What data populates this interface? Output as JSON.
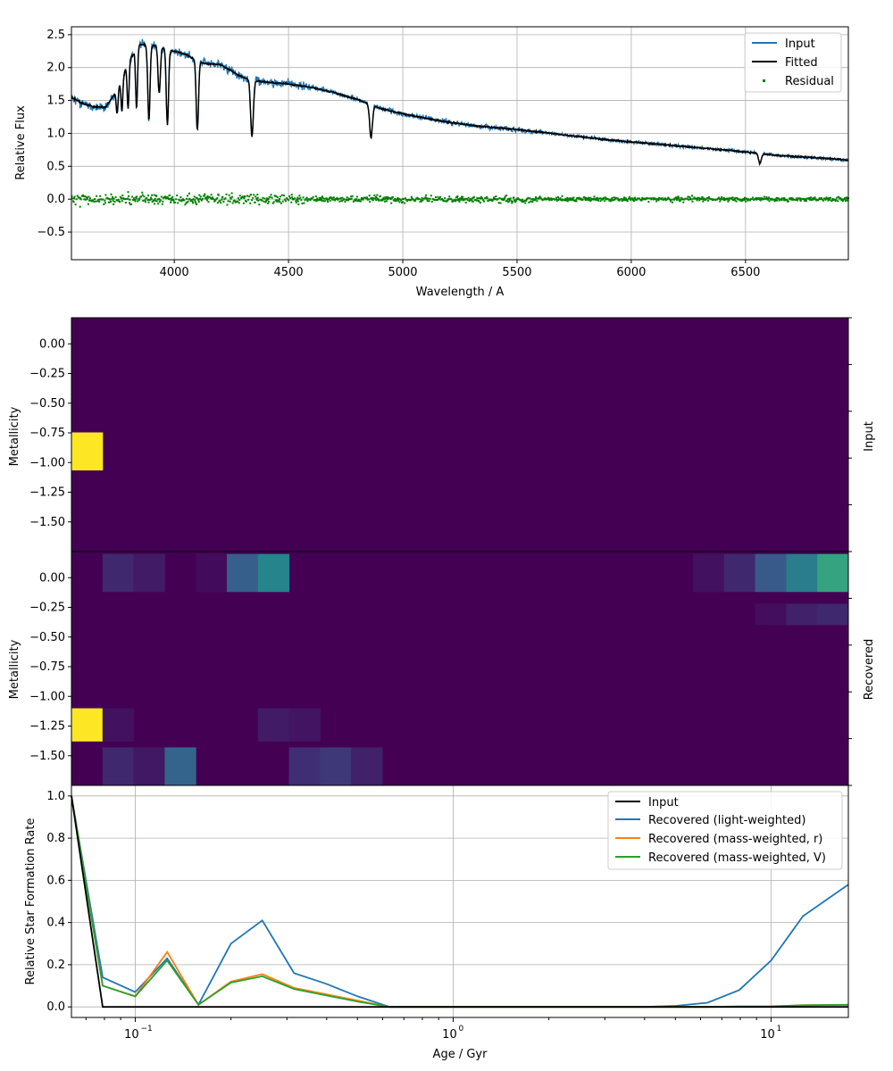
{
  "chart_data": [
    {
      "type": "line",
      "xlabel": "Wavelength / A",
      "ylabel": "Relative Flux",
      "xlim": [
        3550,
        6950
      ],
      "ylim": [
        -0.92,
        2.62
      ],
      "xticks": [
        4000,
        4500,
        5000,
        5500,
        6000,
        6500
      ],
      "yticks": [
        -0.5,
        0.0,
        0.5,
        1.0,
        1.5,
        2.0,
        2.5
      ],
      "ytick_labels": [
        "−0.5",
        "0.0",
        "0.5",
        "1.0",
        "1.5",
        "2.0",
        "2.5"
      ],
      "grid": true,
      "legend_position": "top-right",
      "continuum": [
        [
          3550,
          1.55
        ],
        [
          3600,
          1.45
        ],
        [
          3650,
          1.4
        ],
        [
          3700,
          1.4
        ],
        [
          3750,
          1.65
        ],
        [
          3800,
          2.1
        ],
        [
          3850,
          2.35
        ],
        [
          3900,
          2.35
        ],
        [
          3950,
          2.3
        ],
        [
          4000,
          2.25
        ],
        [
          4050,
          2.2
        ],
        [
          4100,
          2.1
        ],
        [
          4150,
          2.05
        ],
        [
          4200,
          2.05
        ],
        [
          4250,
          1.95
        ],
        [
          4300,
          1.85
        ],
        [
          4350,
          1.8
        ],
        [
          4400,
          1.78
        ],
        [
          4500,
          1.75
        ],
        [
          4600,
          1.7
        ],
        [
          4700,
          1.62
        ],
        [
          4800,
          1.52
        ],
        [
          4850,
          1.45
        ],
        [
          4900,
          1.38
        ],
        [
          5000,
          1.3
        ],
        [
          5100,
          1.23
        ],
        [
          5200,
          1.17
        ],
        [
          5300,
          1.12
        ],
        [
          5400,
          1.09
        ],
        [
          5500,
          1.06
        ],
        [
          5600,
          1.02
        ],
        [
          5700,
          0.98
        ],
        [
          5800,
          0.94
        ],
        [
          5900,
          0.9
        ],
        [
          6000,
          0.87
        ],
        [
          6100,
          0.84
        ],
        [
          6200,
          0.81
        ],
        [
          6300,
          0.78
        ],
        [
          6400,
          0.75
        ],
        [
          6500,
          0.72
        ],
        [
          6600,
          0.68
        ],
        [
          6700,
          0.65
        ],
        [
          6800,
          0.63
        ],
        [
          6900,
          0.61
        ],
        [
          6950,
          0.59
        ]
      ],
      "absorption_lines": [
        [
          3750,
          0.35,
          4
        ],
        [
          3771,
          0.5,
          4
        ],
        [
          3798,
          0.7,
          4
        ],
        [
          3835,
          0.9,
          4
        ],
        [
          3889,
          1.15,
          5
        ],
        [
          3934,
          0.7,
          5
        ],
        [
          3970,
          1.15,
          5
        ],
        [
          4101,
          1.05,
          5
        ],
        [
          4340,
          0.85,
          6
        ],
        [
          4861,
          0.5,
          6
        ],
        [
          6563,
          0.15,
          6
        ]
      ],
      "series": [
        {
          "name": "Input",
          "color": "#1f77b4"
        },
        {
          "name": "Fitted",
          "color": "#000000"
        },
        {
          "name": "Residual",
          "color": "#008000"
        }
      ]
    },
    {
      "type": "heatmap",
      "ylabel": "Metallicity",
      "side_label": "Input",
      "yticks": [
        0.0,
        -0.25,
        -0.5,
        -0.75,
        -1.0,
        -1.25,
        -1.5
      ],
      "ytick_labels": [
        "0.00",
        "−0.25",
        "−0.50",
        "−0.75",
        "−1.00",
        "−1.25",
        "−1.50"
      ],
      "ylim": [
        -1.75,
        0.22
      ],
      "columns": 25,
      "rows": 5,
      "cells": [
        [
          0,
          3,
          1.0
        ]
      ],
      "colormap": "viridis"
    },
    {
      "type": "heatmap",
      "ylabel": "Metallicity",
      "side_label": "Recovered",
      "yticks": [
        0.0,
        -0.25,
        -0.5,
        -0.75,
        -1.0,
        -1.25,
        -1.5
      ],
      "ytick_labels": [
        "0.00",
        "−0.25",
        "−0.50",
        "−0.75",
        "−1.00",
        "−1.25",
        "−1.50"
      ],
      "ylim": [
        -1.75,
        0.22
      ],
      "columns": 25,
      "rows": 5,
      "cells": [
        [
          1,
          0,
          0.12
        ],
        [
          2,
          0,
          0.08
        ],
        [
          4,
          0,
          0.03
        ],
        [
          5,
          0,
          0.3
        ],
        [
          6,
          0,
          0.45
        ],
        [
          20,
          0,
          0.05
        ],
        [
          21,
          0,
          0.12
        ],
        [
          22,
          0,
          0.28
        ],
        [
          23,
          0,
          0.42
        ],
        [
          24,
          0,
          0.58
        ],
        [
          22,
          1,
          0.04
        ],
        [
          23,
          1,
          0.1
        ],
        [
          24,
          1,
          0.12
        ],
        [
          0,
          4,
          1.0
        ],
        [
          1,
          4,
          0.05
        ],
        [
          6,
          4,
          0.08
        ],
        [
          7,
          4,
          0.06
        ],
        [
          1,
          5,
          0.12
        ],
        [
          2,
          5,
          0.07
        ],
        [
          3,
          5,
          0.32
        ],
        [
          7,
          5,
          0.14
        ],
        [
          8,
          5,
          0.17
        ],
        [
          9,
          5,
          0.1
        ]
      ],
      "colormap": "viridis"
    },
    {
      "type": "line",
      "xlabel": "Age / Gyr",
      "ylabel": "Relative Star Formation Rate",
      "xscale": "log",
      "xlim": [
        0.063,
        17.5
      ],
      "ylim": [
        -0.05,
        1.05
      ],
      "xticks": [
        0.1,
        1,
        10
      ],
      "xtick_labels": [
        "10",
        "10",
        "10"
      ],
      "xtick_exponents": [
        "−1",
        "0",
        "1"
      ],
      "yticks": [
        0.0,
        0.2,
        0.4,
        0.6,
        0.8,
        1.0
      ],
      "ytick_labels": [
        "0.0",
        "0.2",
        "0.4",
        "0.6",
        "0.8",
        "1.0"
      ],
      "grid": true,
      "legend_position": "top-right",
      "x": [
        0.063,
        0.079,
        0.1,
        0.126,
        0.158,
        0.2,
        0.251,
        0.316,
        0.398,
        0.501,
        0.631,
        0.794,
        1.0,
        1.26,
        1.58,
        2.0,
        2.51,
        3.16,
        3.98,
        5.01,
        6.31,
        7.94,
        10.0,
        12.6,
        17.5
      ],
      "series": [
        {
          "name": "Input",
          "color": "#000000",
          "values": [
            1.0,
            0.0,
            0.0,
            0.0,
            0.0,
            0.0,
            0.0,
            0.0,
            0.0,
            0.0,
            0.0,
            0.0,
            0.0,
            0.0,
            0.0,
            0.0,
            0.0,
            0.0,
            0.0,
            0.0,
            0.0,
            0.0,
            0.0,
            0.0,
            0.0
          ]
        },
        {
          "name": "Recovered (light-weighted)",
          "color": "#1f77b4",
          "values": [
            1.0,
            0.14,
            0.07,
            0.23,
            0.01,
            0.3,
            0.41,
            0.16,
            0.11,
            0.05,
            0.0,
            0.0,
            0.0,
            0.0,
            0.0,
            0.0,
            0.0,
            0.0,
            0.0,
            0.005,
            0.02,
            0.08,
            0.22,
            0.43,
            0.58
          ]
        },
        {
          "name": "Recovered (mass-weighted, r)",
          "color": "#ff7f0e",
          "values": [
            1.0,
            0.1,
            0.05,
            0.26,
            0.01,
            0.12,
            0.155,
            0.09,
            0.06,
            0.03,
            0.0,
            0.0,
            0.0,
            0.0,
            0.0,
            0.0,
            0.0,
            0.0,
            0.0,
            0.0,
            0.0,
            0.002,
            0.003,
            0.008,
            0.01
          ]
        },
        {
          "name": "Recovered (mass-weighted, V)",
          "color": "#2ca02c",
          "values": [
            1.0,
            0.1,
            0.05,
            0.22,
            0.01,
            0.115,
            0.145,
            0.085,
            0.055,
            0.025,
            0.0,
            0.0,
            0.0,
            0.0,
            0.0,
            0.0,
            0.0,
            0.0,
            0.0,
            0.0,
            0.0,
            0.002,
            0.003,
            0.008,
            0.01
          ]
        }
      ]
    }
  ]
}
